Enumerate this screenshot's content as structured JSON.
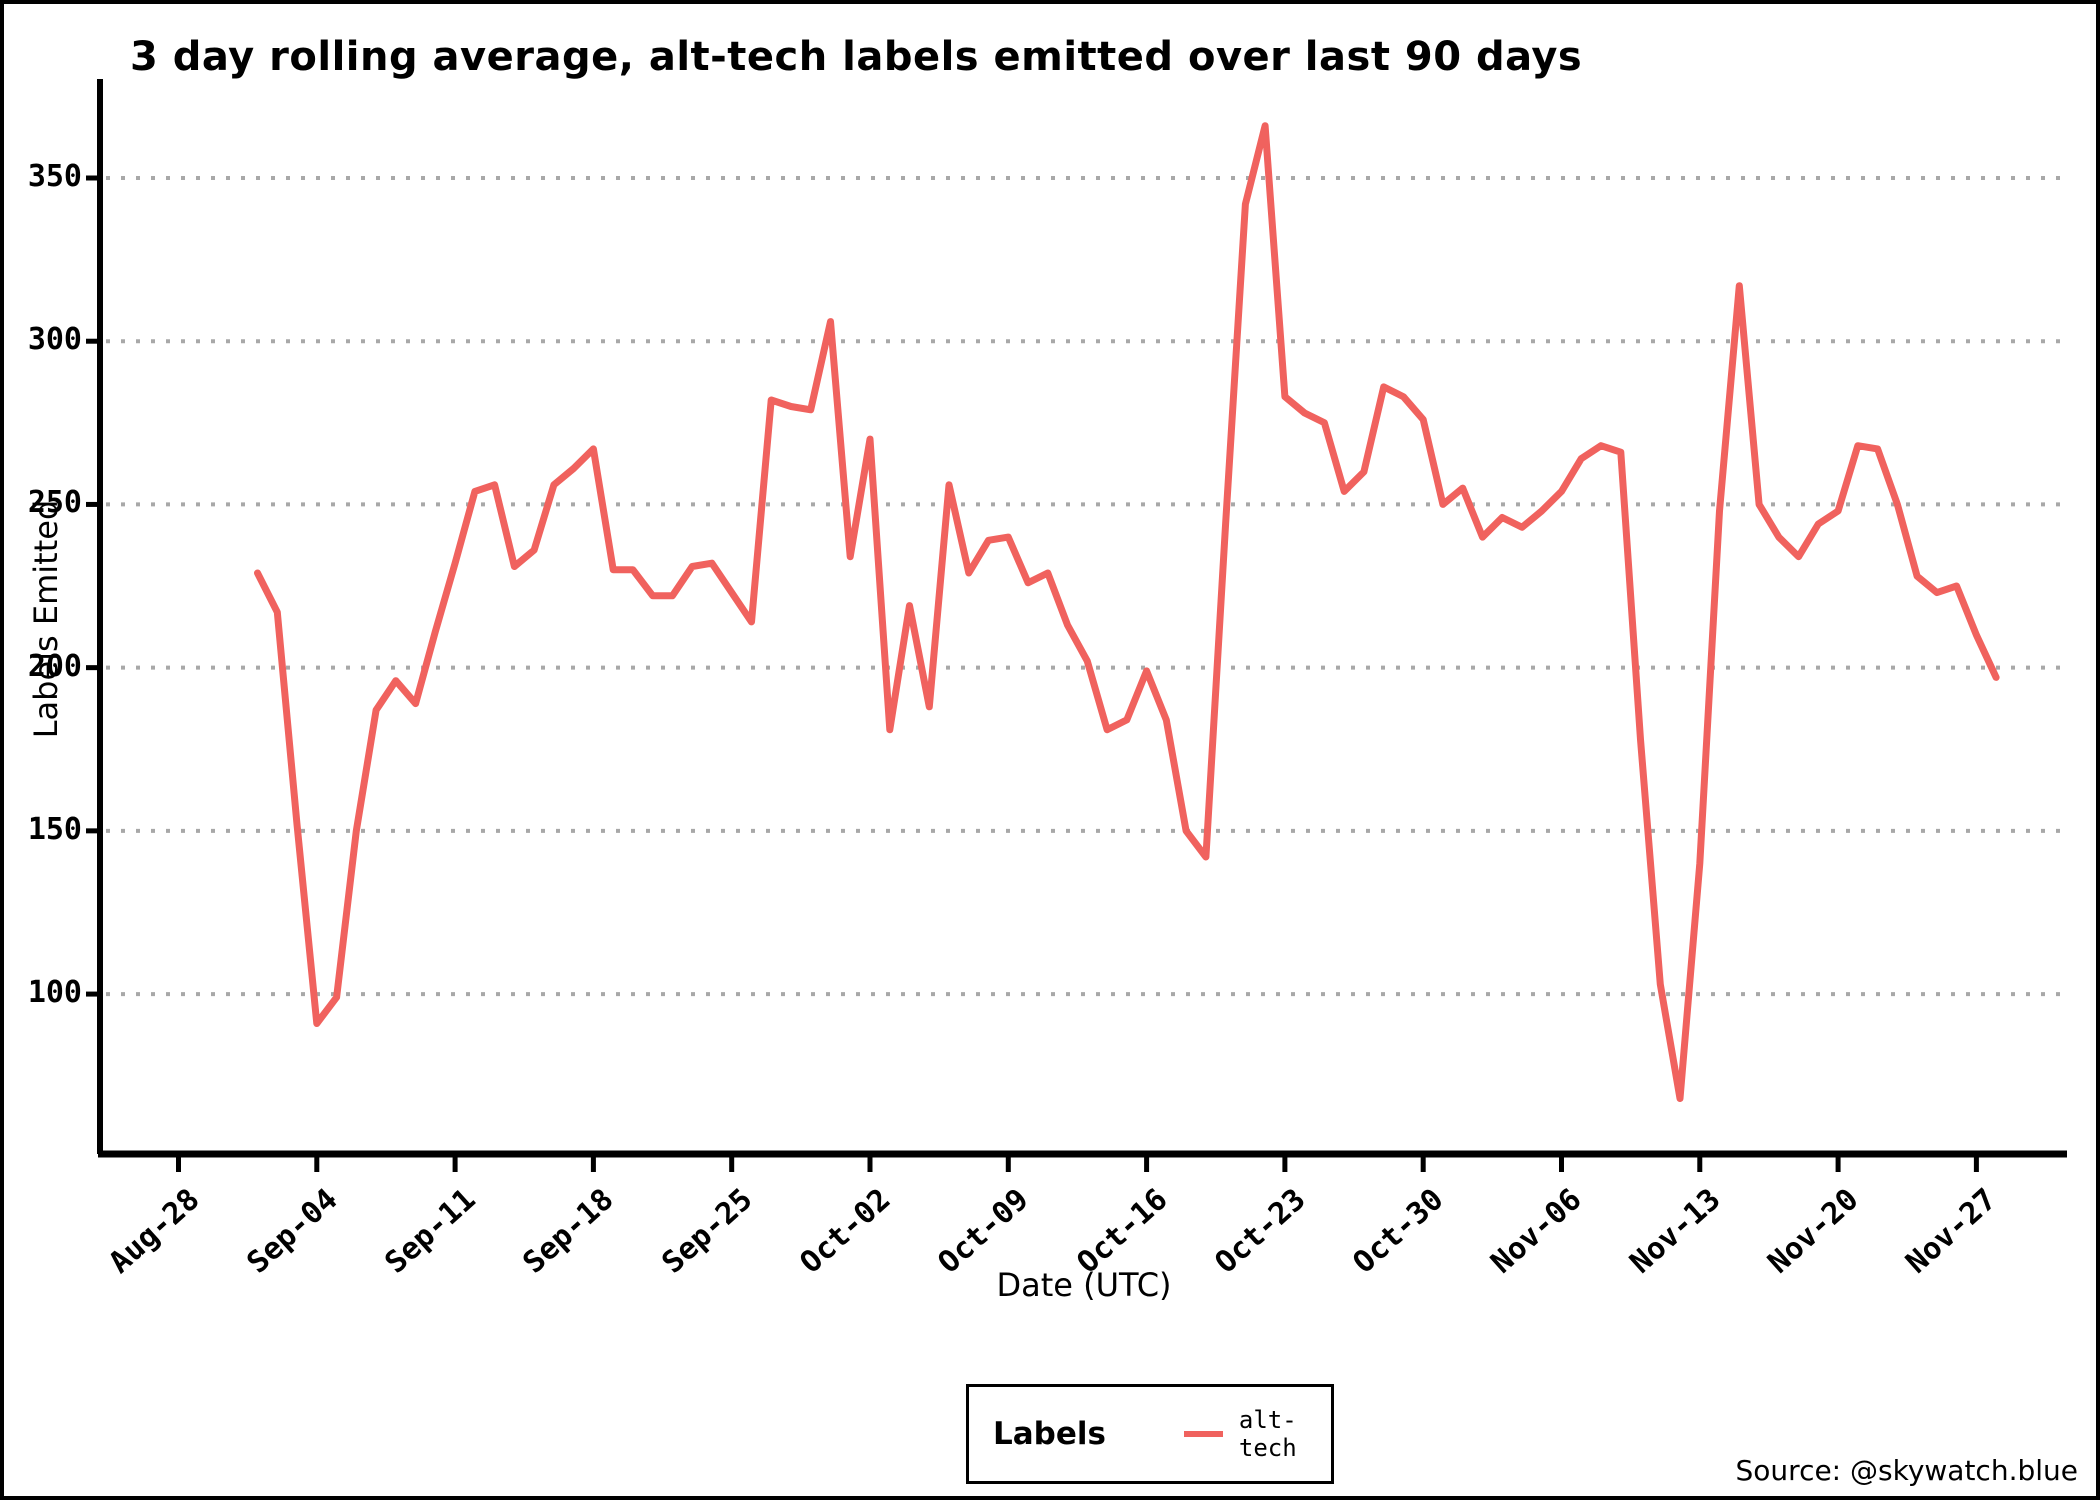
{
  "title": "3 day rolling average, alt-tech labels emitted over last 90 days",
  "axes": {
    "x_label": "Date (UTC)",
    "y_label": "Labels Emitted",
    "x_ticks": [
      "Aug-28",
      "Sep-04",
      "Sep-11",
      "Sep-18",
      "Sep-25",
      "Oct-02",
      "Oct-09",
      "Oct-16",
      "Oct-23",
      "Oct-30",
      "Nov-06",
      "Nov-13",
      "Nov-20",
      "Nov-27"
    ],
    "y_ticks": [
      350,
      300,
      250,
      200,
      150,
      100
    ]
  },
  "legend": {
    "title": "Labels",
    "series_label": "alt-tech"
  },
  "source": "Source: @skywatch.blue",
  "colors": {
    "line": "#f0625e",
    "grid": "#a8a8a8",
    "axis": "#000000",
    "background": "#ffffff"
  },
  "chart_data": {
    "type": "line",
    "title": "3 day rolling average, alt-tech labels emitted over last 90 days",
    "xlabel": "Date (UTC)",
    "ylabel": "Labels Emitted",
    "ylim": [
      50,
      375
    ],
    "grid": "horizontal-dotted",
    "legend_position": "bottom-center",
    "series": [
      {
        "name": "alt-tech",
        "color": "#f0625e",
        "dates": [
          "Sep-01",
          "Sep-02",
          "Sep-03",
          "Sep-04",
          "Sep-05",
          "Sep-06",
          "Sep-07",
          "Sep-08",
          "Sep-09",
          "Sep-10",
          "Sep-11",
          "Sep-12",
          "Sep-13",
          "Sep-14",
          "Sep-15",
          "Sep-16",
          "Sep-17",
          "Sep-18",
          "Sep-19",
          "Sep-20",
          "Sep-21",
          "Sep-22",
          "Sep-23",
          "Sep-24",
          "Sep-25",
          "Sep-26",
          "Sep-27",
          "Sep-28",
          "Sep-29",
          "Sep-30",
          "Oct-01",
          "Oct-02",
          "Oct-03",
          "Oct-04",
          "Oct-05",
          "Oct-06",
          "Oct-07",
          "Oct-08",
          "Oct-09",
          "Oct-10",
          "Oct-11",
          "Oct-12",
          "Oct-13",
          "Oct-14",
          "Oct-15",
          "Oct-16",
          "Oct-17",
          "Oct-18",
          "Oct-19",
          "Oct-20",
          "Oct-21",
          "Oct-22",
          "Oct-23",
          "Oct-24",
          "Oct-25",
          "Oct-26",
          "Oct-27",
          "Oct-28",
          "Oct-29",
          "Oct-30",
          "Oct-31",
          "Nov-01",
          "Nov-02",
          "Nov-03",
          "Nov-04",
          "Nov-05",
          "Nov-06",
          "Nov-07",
          "Nov-08",
          "Nov-09",
          "Nov-10",
          "Nov-11",
          "Nov-12",
          "Nov-13",
          "Nov-14",
          "Nov-15",
          "Nov-16",
          "Nov-17",
          "Nov-18",
          "Nov-19",
          "Nov-20",
          "Nov-21",
          "Nov-22",
          "Nov-23",
          "Nov-24",
          "Nov-25",
          "Nov-26",
          "Nov-27",
          "Nov-28"
        ],
        "values": [
          229,
          217,
          152,
          91,
          99,
          150,
          187,
          196,
          189,
          211,
          232,
          254,
          256,
          231,
          236,
          256,
          261,
          267,
          230,
          230,
          222,
          222,
          231,
          232,
          223,
          214,
          282,
          280,
          279,
          306,
          234,
          270,
          181,
          219,
          188,
          256,
          229,
          239,
          240,
          226,
          229,
          213,
          202,
          181,
          184,
          199,
          184,
          150,
          142,
          244,
          342,
          366,
          283,
          278,
          275,
          254,
          260,
          286,
          283,
          276,
          250,
          255,
          240,
          246,
          243,
          248,
          254,
          264,
          268,
          266,
          178,
          103,
          68,
          140,
          248,
          317,
          250,
          240,
          234,
          244,
          248,
          268,
          267,
          250,
          228,
          223,
          225,
          210,
          197
        ]
      }
    ]
  }
}
